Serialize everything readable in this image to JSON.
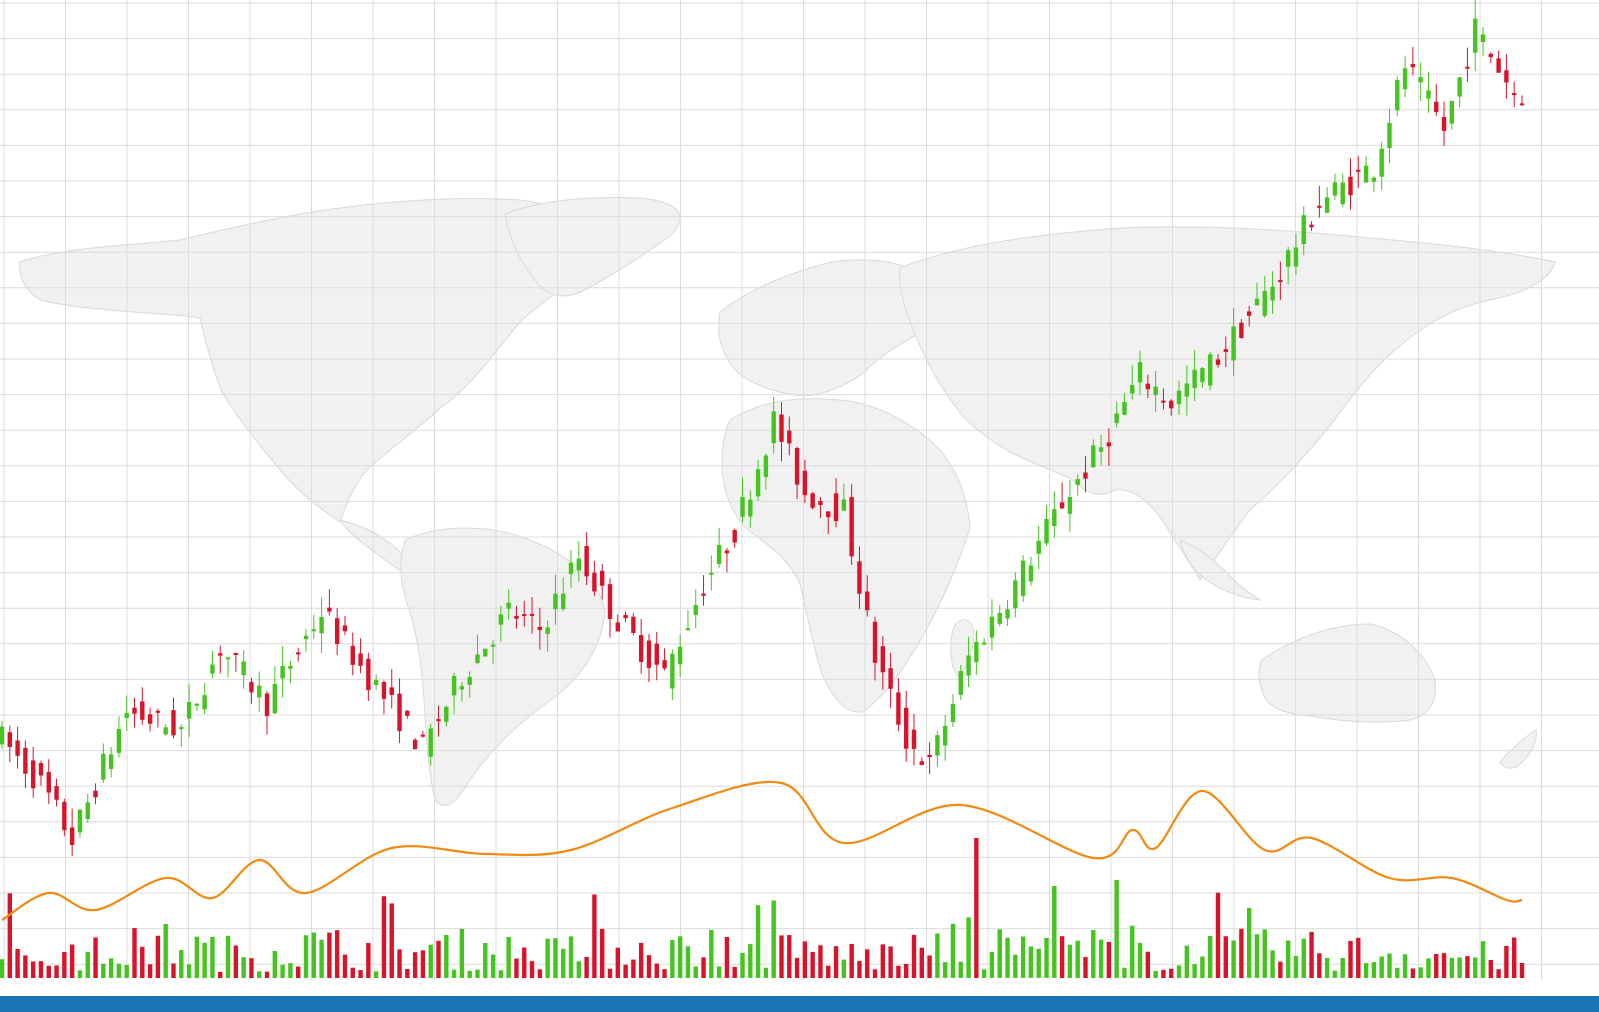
{
  "colors": {
    "background": "#ffffff",
    "grid": "#dcdcdc",
    "map_fill": "#f1f1f1",
    "map_stroke": "#d9d9d9",
    "bull": "#45c41f",
    "bear": "#d8142b",
    "line": "#f08a10",
    "bottom_bar": "#1a75b5"
  },
  "icons": {
    "background": "world-map-icon"
  },
  "chart_data": {
    "type": "candlestick",
    "title": "",
    "xlabel": "",
    "ylabel": "",
    "grid": true,
    "legend": "none",
    "ylim": [
      0,
      100
    ],
    "price_trend": [
      [
        0,
        22
      ],
      [
        6,
        16
      ],
      [
        10,
        10
      ],
      [
        17,
        24
      ],
      [
        24,
        22
      ],
      [
        29,
        31
      ],
      [
        35,
        25
      ],
      [
        42,
        35
      ],
      [
        47,
        29
      ],
      [
        55,
        20
      ],
      [
        60,
        28
      ],
      [
        66,
        35
      ],
      [
        70,
        33
      ],
      [
        75,
        41
      ],
      [
        80,
        34
      ],
      [
        86,
        28
      ],
      [
        91,
        38
      ],
      [
        95,
        44
      ],
      [
        100,
        56
      ],
      [
        104,
        48
      ],
      [
        109,
        46
      ],
      [
        113,
        30
      ],
      [
        117,
        21
      ],
      [
        120,
        18
      ],
      [
        125,
        30
      ],
      [
        131,
        38
      ],
      [
        137,
        47
      ],
      [
        142,
        53
      ],
      [
        147,
        61
      ],
      [
        151,
        58
      ],
      [
        157,
        63
      ],
      [
        164,
        71
      ],
      [
        170,
        80
      ],
      [
        177,
        84
      ],
      [
        181,
        95
      ],
      [
        186,
        88
      ],
      [
        190,
        99
      ],
      [
        195,
        92
      ]
    ],
    "volume_trend": [
      [
        0,
        12
      ],
      [
        10,
        8
      ],
      [
        20,
        14
      ],
      [
        30,
        10
      ],
      [
        40,
        13
      ],
      [
        50,
        11
      ],
      [
        60,
        12
      ],
      [
        70,
        10
      ],
      [
        80,
        13
      ],
      [
        90,
        11
      ],
      [
        100,
        12
      ],
      [
        110,
        9
      ],
      [
        120,
        11
      ],
      [
        130,
        13
      ],
      [
        140,
        12
      ],
      [
        150,
        10
      ],
      [
        160,
        12
      ],
      [
        170,
        11
      ],
      [
        180,
        10
      ],
      [
        190,
        9
      ],
      [
        195,
        10
      ]
    ],
    "volume_spikes": [
      {
        "index": 125,
        "value": 100,
        "direction": "bear"
      },
      {
        "index": 143,
        "value": 70,
        "direction": "bull"
      },
      {
        "index": 97,
        "value": 52,
        "direction": "bull"
      },
      {
        "index": 160,
        "value": 50,
        "direction": "bull"
      }
    ],
    "moving_average": [
      [
        0,
        18
      ],
      [
        6,
        45
      ],
      [
        12,
        28
      ],
      [
        21,
        60
      ],
      [
        27,
        40
      ],
      [
        33,
        78
      ],
      [
        39,
        45
      ],
      [
        50,
        90
      ],
      [
        62,
        84
      ],
      [
        73,
        88
      ],
      [
        86,
        130
      ],
      [
        100,
        155
      ],
      [
        108,
        95
      ],
      [
        123,
        133
      ],
      [
        140,
        80
      ],
      [
        145,
        108
      ],
      [
        148,
        90
      ],
      [
        154,
        147
      ],
      [
        162,
        88
      ],
      [
        168,
        100
      ],
      [
        178,
        60
      ],
      [
        186,
        60
      ],
      [
        193,
        38
      ],
      [
        195,
        38
      ]
    ],
    "candle_count": 196,
    "seed": 7
  }
}
